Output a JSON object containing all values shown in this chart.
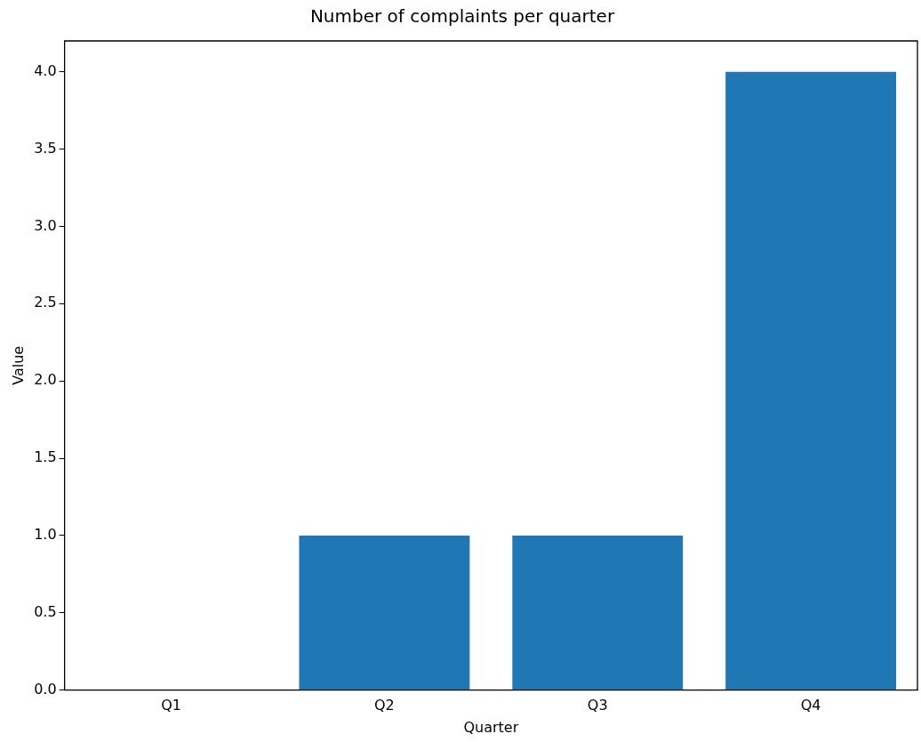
{
  "chart_data": {
    "type": "bar",
    "title": "Number of complaints per quarter",
    "xlabel": "Quarter",
    "ylabel": "Value",
    "categories": [
      "Q1",
      "Q2",
      "Q3",
      "Q4"
    ],
    "values": [
      0,
      1,
      1,
      4
    ],
    "color": "#1f77b4",
    "ylim": [
      0,
      4.2
    ],
    "yticks": [
      {
        "value": 0,
        "label": "0.0"
      },
      {
        "value": 0.5,
        "label": "0.5"
      },
      {
        "value": 1,
        "label": "1.0"
      },
      {
        "value": 1.5,
        "label": "1.5"
      },
      {
        "value": 2,
        "label": "2.0"
      },
      {
        "value": 2.5,
        "label": "2.5"
      },
      {
        "value": 3,
        "label": "3.0"
      },
      {
        "value": 3.5,
        "label": "3.5"
      },
      {
        "value": 4,
        "label": "4.0"
      }
    ],
    "grid": false
  }
}
